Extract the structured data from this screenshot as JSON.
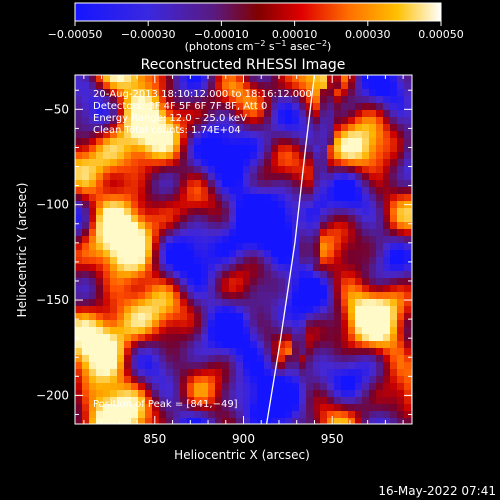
{
  "chart_data": {
    "type": "heatmap",
    "title": "Reconstructed RHESSI Image",
    "xlabel": "Heliocentric X (arcsec)",
    "ylabel": "Heliocentric Y (arcsec)",
    "xlim": [
      805,
      995
    ],
    "ylim": [
      -215,
      -32
    ],
    "x_ticks": [
      850,
      900,
      950
    ],
    "x_tick_labels": [
      "850",
      "900",
      "950"
    ],
    "y_ticks": [
      -50,
      -100,
      -150,
      -200
    ],
    "y_tick_labels": [
      "−50",
      "−100",
      "−150",
      "−200"
    ],
    "colorbar": {
      "range": [
        -0.0005,
        0.0005
      ],
      "ticks": [
        -0.0005,
        -0.0003,
        -0.0001,
        0.0001,
        0.0003,
        0.0005
      ],
      "tick_labels": [
        "−0.00050",
        "−0.00030",
        "−0.00010",
        "0.00010",
        "0.00030",
        "0.00050"
      ],
      "label_text": "(photons cm",
      "label_sup1": "−2",
      "label_mid": " s",
      "label_sup2": "−1",
      "label_mid2": " asec",
      "label_sup3": "−2",
      "label_end": ")"
    },
    "info_lines": [
      "20‑Aug‑2013 18:10:12.000 to 18:16:12.000",
      "Detectors: 3F 4F 5F 6F 7F 8F, Att 0",
      "Energy Range: 12.0 – 25.0 keV",
      "Clean      Total counts: 1.74E+04"
    ],
    "peak_label": "Position of Peak = [841,−49]",
    "peak": [
      841,
      -49
    ],
    "limb_arc": [
      [
        940,
        -32
      ],
      [
        935,
        -70
      ],
      [
        929,
        -120
      ],
      [
        921,
        -170
      ],
      [
        913,
        -215
      ]
    ],
    "colors": [
      "#0000ff",
      "#6020a0",
      "#c00000",
      "#ff5000",
      "#ffb000",
      "#ffffff"
    ]
  },
  "footer": {
    "timestamp": "16‑May‑2022 07:41"
  }
}
